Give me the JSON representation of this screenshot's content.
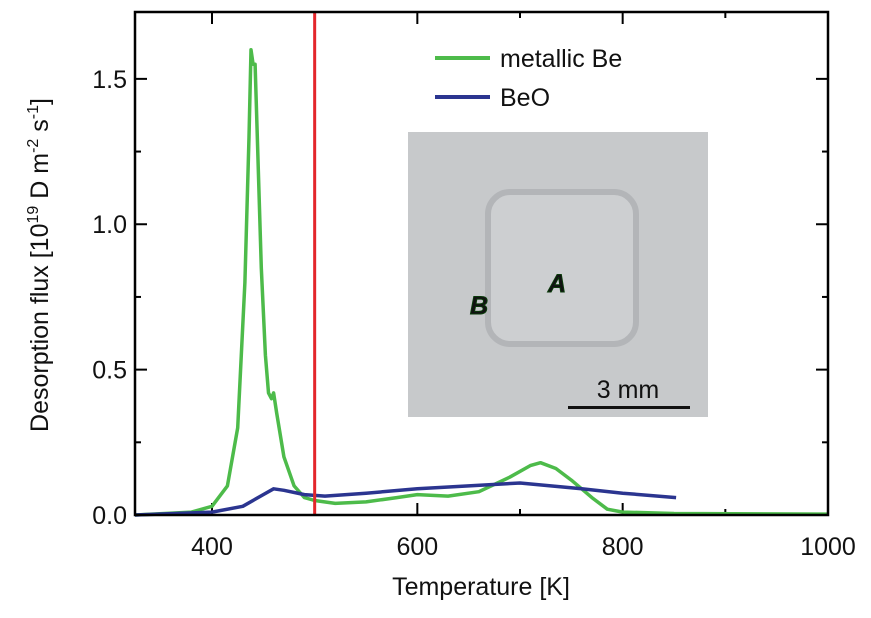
{
  "chart_data": {
    "type": "line",
    "xlabel": "Temperature [K]",
    "ylabel": [
      "Desorption flux [10",
      "19",
      " D m",
      "-2",
      " s",
      "-1",
      "]"
    ],
    "xlim": [
      325,
      1000
    ],
    "ylim": [
      0,
      1.73
    ],
    "xticks": [
      400,
      600,
      800,
      1000
    ],
    "xminorticks": [
      500,
      700,
      900
    ],
    "yticks": [
      {
        "value": 0,
        "label": "0.0"
      },
      0.5,
      {
        "value": 1,
        "label": "1.0"
      },
      1.5
    ],
    "yminorticks": [
      0.25,
      0.75,
      1.25
    ],
    "legend": "top",
    "vline": {
      "value": 500,
      "color": "#e3262b"
    },
    "inset_labels": [
      "A",
      "B",
      "3 mm"
    ],
    "series": [
      {
        "name": "metallic Be",
        "color": "#4dbb4a",
        "x": [
          325,
          380,
          400,
          415,
          425,
          432,
          436,
          438,
          440,
          442,
          445,
          448,
          452,
          455,
          458,
          460,
          463,
          470,
          480,
          490,
          500,
          520,
          550,
          580,
          600,
          630,
          660,
          690,
          710,
          720,
          735,
          750,
          770,
          785,
          800,
          850,
          1000
        ],
        "values": [
          0,
          0.01,
          0.03,
          0.1,
          0.3,
          0.8,
          1.3,
          1.6,
          1.55,
          1.55,
          1.2,
          0.85,
          0.55,
          0.42,
          0.4,
          0.42,
          0.35,
          0.2,
          0.1,
          0.06,
          0.05,
          0.04,
          0.045,
          0.06,
          0.07,
          0.065,
          0.08,
          0.13,
          0.17,
          0.18,
          0.16,
          0.12,
          0.06,
          0.02,
          0.01,
          0.005,
          0.003
        ]
      },
      {
        "name": "BeO",
        "color": "#2b3590",
        "x": [
          325,
          400,
          430,
          450,
          460,
          470,
          490,
          510,
          550,
          600,
          650,
          700,
          730,
          760,
          800,
          852
        ],
        "values": [
          0,
          0.01,
          0.03,
          0.07,
          0.09,
          0.085,
          0.07,
          0.065,
          0.075,
          0.09,
          0.1,
          0.11,
          0.1,
          0.09,
          0.075,
          0.06
        ]
      }
    ]
  }
}
